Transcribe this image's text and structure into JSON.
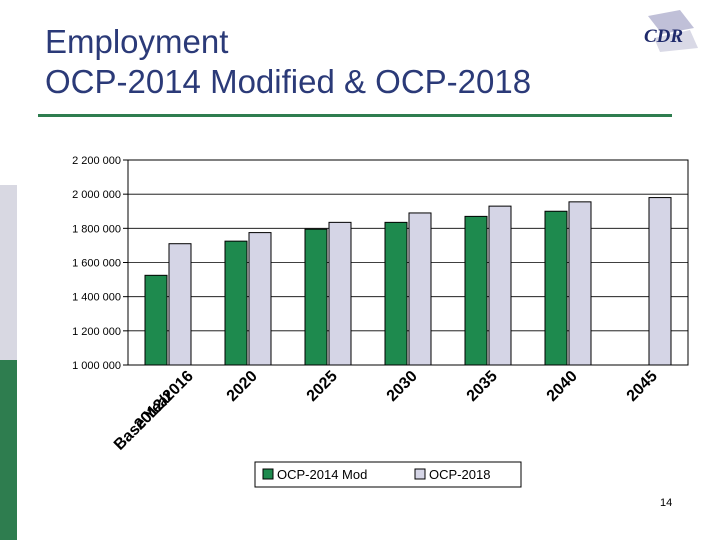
{
  "slide": {
    "title_line1": "Employment",
    "title_line2": "OCP-2014 Modified & OCP-2018",
    "page_number": "14",
    "logo_text": "CDR"
  },
  "colors": {
    "accent_green": "#2e7d4f",
    "title_blue": "#2b3a78",
    "side_gray": "#d8d8e2",
    "series1": "#1e8a4e",
    "series2": "#d5d5e6"
  },
  "chart_data": {
    "type": "bar",
    "title": "",
    "xlabel": "",
    "ylabel": "",
    "ylim": [
      1000000,
      2200000
    ],
    "yticks": [
      1000000,
      1200000,
      1400000,
      1600000,
      1800000,
      2000000,
      2200000
    ],
    "ytick_labels": [
      "1 000 000",
      "1 200 000",
      "1 400 000",
      "1 600 000",
      "1 800 000",
      "2 000 000",
      "2 200 000"
    ],
    "categories": [
      "2012/2016 Base Year",
      "2020",
      "2025",
      "2030",
      "2035",
      "2040",
      "2045"
    ],
    "category_lines": [
      [
        "2012/2016",
        "Base Year"
      ],
      [
        "2020"
      ],
      [
        "2025"
      ],
      [
        "2030"
      ],
      [
        "2035"
      ],
      [
        "2040"
      ],
      [
        "2045"
      ]
    ],
    "series": [
      {
        "name": "OCP-2014 Mod",
        "color": "#1e8a4e",
        "values": [
          1525000,
          1725000,
          1795000,
          1835000,
          1870000,
          1900000,
          null
        ]
      },
      {
        "name": "OCP-2018",
        "color": "#d5d5e6",
        "values": [
          1710000,
          1775000,
          1835000,
          1890000,
          1930000,
          1955000,
          1980000
        ]
      }
    ],
    "legend_position": "bottom",
    "grid": true
  }
}
